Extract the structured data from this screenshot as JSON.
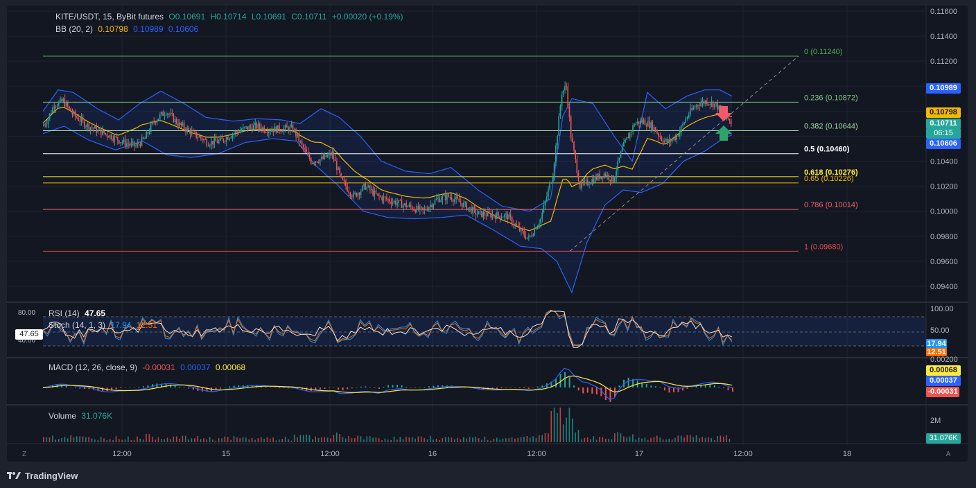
{
  "header": {
    "symbol": "KITE/USDT, 15, ByBit futures",
    "open": "O0.10691",
    "high": "H0.10714",
    "low": "L0.10691",
    "close": "C0.10711",
    "change": "+0.00020 (+0.19%)",
    "bb_label": "BB (20, 2)",
    "bb_mid": "0.10798",
    "bb_upper": "0.10989",
    "bb_lower": "0.10606"
  },
  "rsi": {
    "label": "RSI (14)",
    "value": "47.65",
    "stoch_label": "Stoch (14, 1, 3)",
    "stoch_k": "17.94",
    "stoch_d": "12.51"
  },
  "macd": {
    "label": "MACD (12, 26, close, 9)",
    "hist": "-0.00031",
    "macd": "0.00037",
    "signal": "0.00068"
  },
  "volume": {
    "label": "Volume",
    "value": "31.076K"
  },
  "price_tags": {
    "upper": "0.10989",
    "mid": "0.10798",
    "last": "0.10711",
    "countdown": "06:15",
    "lower": "0.10606"
  },
  "indicator_tags": {
    "rsi_cursor": "47.65",
    "stoch_k": "17.94",
    "stoch_d": "12.51",
    "macd_signal": "0.00068",
    "macd_line": "0.00037",
    "macd_hist": "-0.00031",
    "volume": "31.076K"
  },
  "fib_levels": [
    {
      "label": "0 (0.11240)",
      "price": 0.1124,
      "color": "#4caf50"
    },
    {
      "label": "0.236 (0.10872)",
      "price": 0.10872,
      "color": "#81c784"
    },
    {
      "label": "0.382 (0.10644)",
      "price": 0.10644,
      "color": "#9fdf9f"
    },
    {
      "label": "0.5 (0.10460)",
      "price": 0.1046,
      "color": "#ffffff"
    },
    {
      "label": "0.618 (0.10276)",
      "price": 0.10276,
      "color": "#ffeb3b"
    },
    {
      "label": "0.65 (0.10226)",
      "price": 0.10226,
      "color": "#f5b800"
    },
    {
      "label": "0.786 (0.10014)",
      "price": 0.10014,
      "color": "#f06262"
    },
    {
      "label": "1 (0.09680)",
      "price": 0.0968,
      "color": "#e04848"
    }
  ],
  "price_axis": [
    "0.11600",
    "0.11400",
    "0.11200",
    "0.11000",
    "0.10800",
    "0.10600",
    "0.10400",
    "0.10200",
    "0.10000",
    "0.09800",
    "0.09600",
    "0.09400"
  ],
  "rsi_axis": [
    "100.00",
    "50.00",
    "80.00",
    "40.00"
  ],
  "macd_axis": [
    "0.00200"
  ],
  "volume_axis": [
    "2M"
  ],
  "time_axis": [
    "12:00",
    "15",
    "12:00",
    "16",
    "12:00",
    "17",
    "12:00",
    "18"
  ],
  "corner_labels": {
    "left": "Z",
    "right": "A"
  },
  "brand": "TradingView",
  "colors": {
    "up": "#26a69a",
    "down": "#ef5350",
    "bb_band": "#2962ff",
    "bb_mid": "#f5b800",
    "rsi": "#e8e8e8",
    "stoch_k": "#2196f3",
    "stoch_d": "#ff6d00",
    "macd": "#2962ff",
    "signal": "#ffeb3b"
  },
  "chart_data": {
    "type": "candlestick",
    "title": "KITE/USDT, 15, ByBit futures",
    "ylim": [
      0.093,
      0.116
    ],
    "x_labels": [
      "12:00",
      "15",
      "12:00",
      "16",
      "12:00",
      "17",
      "12:00",
      "18"
    ],
    "price_path": [
      [
        0,
        0.1068
      ],
      [
        3,
        0.1072
      ],
      [
        8,
        0.1085
      ],
      [
        14,
        0.1088
      ],
      [
        20,
        0.1078
      ],
      [
        28,
        0.107
      ],
      [
        36,
        0.1065
      ],
      [
        46,
        0.106
      ],
      [
        54,
        0.1055
      ],
      [
        62,
        0.1052
      ],
      [
        68,
        0.1058
      ],
      [
        74,
        0.1072
      ],
      [
        82,
        0.108
      ],
      [
        90,
        0.107
      ],
      [
        100,
        0.1062
      ],
      [
        110,
        0.1055
      ],
      [
        118,
        0.1056
      ],
      [
        126,
        0.1062
      ],
      [
        134,
        0.1066
      ],
      [
        142,
        0.1068
      ],
      [
        150,
        0.1065
      ],
      [
        158,
        0.1066
      ],
      [
        166,
        0.1066
      ],
      [
        172,
        0.1052
      ],
      [
        178,
        0.104
      ],
      [
        186,
        0.1042
      ],
      [
        192,
        0.1046
      ],
      [
        198,
        0.1025
      ],
      [
        206,
        0.1012
      ],
      [
        214,
        0.102
      ],
      [
        222,
        0.1012
      ],
      [
        232,
        0.1008
      ],
      [
        242,
        0.1004
      ],
      [
        252,
        0.1
      ],
      [
        262,
        0.101
      ],
      [
        270,
        0.1012
      ],
      [
        278,
        0.1006
      ],
      [
        288,
        0.0998
      ],
      [
        298,
        0.0997
      ],
      [
        308,
        0.0996
      ],
      [
        316,
        0.0985
      ],
      [
        322,
        0.0978
      ],
      [
        330,
        0.0994
      ],
      [
        338,
        0.103
      ],
      [
        344,
        0.1095
      ],
      [
        347,
        0.11
      ],
      [
        350,
        0.106
      ],
      [
        356,
        0.102
      ],
      [
        364,
        0.1025
      ],
      [
        372,
        0.103
      ],
      [
        378,
        0.1025
      ],
      [
        384,
        0.105
      ],
      [
        392,
        0.107
      ],
      [
        398,
        0.1072
      ],
      [
        404,
        0.1068
      ],
      [
        410,
        0.1058
      ],
      [
        414,
        0.1055
      ],
      [
        420,
        0.106
      ],
      [
        428,
        0.1078
      ],
      [
        434,
        0.1086
      ],
      [
        440,
        0.1088
      ],
      [
        446,
        0.1085
      ],
      [
        452,
        0.1076
      ],
      [
        456,
        0.1071
      ]
    ],
    "bb_upper_path": [
      [
        0,
        0.108
      ],
      [
        10,
        0.1097
      ],
      [
        20,
        0.1095
      ],
      [
        36,
        0.1082
      ],
      [
        50,
        0.1073
      ],
      [
        64,
        0.1086
      ],
      [
        78,
        0.1096
      ],
      [
        92,
        0.1087
      ],
      [
        108,
        0.1075
      ],
      [
        126,
        0.1072
      ],
      [
        142,
        0.1074
      ],
      [
        158,
        0.1073
      ],
      [
        170,
        0.107
      ],
      [
        184,
        0.1082
      ],
      [
        196,
        0.1075
      ],
      [
        210,
        0.106
      ],
      [
        224,
        0.104
      ],
      [
        240,
        0.1032
      ],
      [
        256,
        0.103
      ],
      [
        270,
        0.1035
      ],
      [
        288,
        0.1017
      ],
      [
        304,
        0.1004
      ],
      [
        322,
        0.1
      ],
      [
        336,
        0.101
      ],
      [
        344,
        0.1076
      ],
      [
        350,
        0.109
      ],
      [
        364,
        0.1086
      ],
      [
        378,
        0.106
      ],
      [
        390,
        0.104
      ],
      [
        400,
        0.1095
      ],
      [
        412,
        0.1082
      ],
      [
        426,
        0.1092
      ],
      [
        438,
        0.1097
      ],
      [
        448,
        0.1097
      ],
      [
        456,
        0.1092
      ]
    ],
    "bb_lower_path": [
      [
        0,
        0.1062
      ],
      [
        14,
        0.1068
      ],
      [
        30,
        0.1057
      ],
      [
        48,
        0.1049
      ],
      [
        66,
        0.1056
      ],
      [
        82,
        0.1045
      ],
      [
        98,
        0.1043
      ],
      [
        116,
        0.1046
      ],
      [
        134,
        0.1055
      ],
      [
        152,
        0.1058
      ],
      [
        168,
        0.1056
      ],
      [
        180,
        0.1037
      ],
      [
        194,
        0.1022
      ],
      [
        212,
        0.1
      ],
      [
        228,
        0.0995
      ],
      [
        246,
        0.0994
      ],
      [
        264,
        0.0995
      ],
      [
        280,
        0.0997
      ],
      [
        298,
        0.0985
      ],
      [
        316,
        0.0972
      ],
      [
        330,
        0.097
      ],
      [
        340,
        0.096
      ],
      [
        350,
        0.0935
      ],
      [
        360,
        0.0975
      ],
      [
        372,
        0.1005
      ],
      [
        384,
        0.1017
      ],
      [
        396,
        0.1015
      ],
      [
        410,
        0.1022
      ],
      [
        424,
        0.104
      ],
      [
        438,
        0.1048
      ],
      [
        450,
        0.1058
      ],
      [
        456,
        0.1061
      ]
    ]
  }
}
